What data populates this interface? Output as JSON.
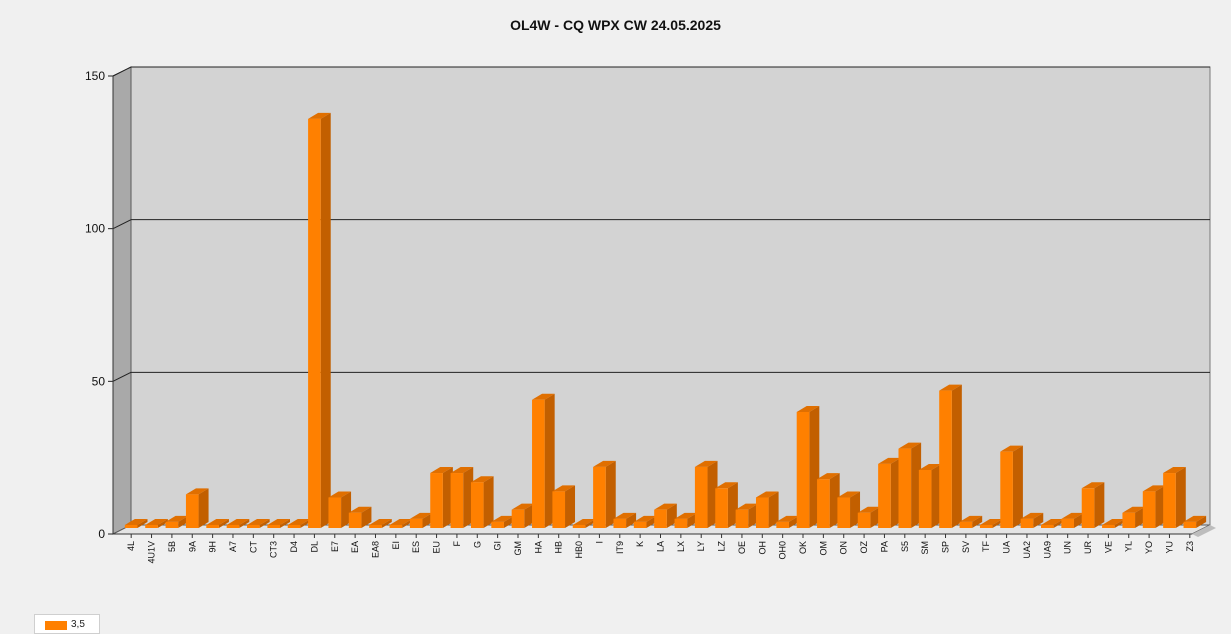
{
  "chart_data": {
    "type": "bar",
    "title": "OL4W - CQ WPX  CW 24.05.2025",
    "xlabel": "",
    "ylabel": "",
    "ylim": [
      0,
      150
    ],
    "yticks": [
      0,
      50,
      100,
      150
    ],
    "grid": true,
    "legend_position": "bottom-left",
    "colors": {
      "bar": "#ff8000",
      "plot_bg": "#d3d3d3"
    },
    "categories": [
      "4L",
      "4U1V",
      "5B",
      "9A",
      "9H",
      "A7",
      "CT",
      "CT3",
      "D4",
      "DL",
      "E7",
      "EA",
      "EA8",
      "EI",
      "ES",
      "EU",
      "F",
      "G",
      "GI",
      "GM",
      "HA",
      "HB",
      "HB0",
      "I",
      "IT9",
      "K",
      "LA",
      "LX",
      "LY",
      "LZ",
      "OE",
      "OH",
      "OH0",
      "OK",
      "OM",
      "ON",
      "OZ",
      "PA",
      "S5",
      "SM",
      "SP",
      "SV",
      "TF",
      "UA",
      "UA2",
      "UA9",
      "UN",
      "UR",
      "VE",
      "YL",
      "YO",
      "YU",
      "Z3"
    ],
    "series": [
      {
        "name": "3,5",
        "values": [
          1,
          1,
          2,
          11,
          1,
          1,
          1,
          1,
          1,
          134,
          10,
          5,
          1,
          1,
          3,
          18,
          18,
          15,
          2,
          6,
          42,
          12,
          1,
          20,
          3,
          2,
          6,
          3,
          20,
          13,
          6,
          10,
          2,
          38,
          16,
          10,
          5,
          21,
          26,
          19,
          45,
          2,
          1,
          25,
          3,
          1,
          3,
          13,
          1,
          5,
          12,
          18,
          2
        ]
      }
    ]
  }
}
